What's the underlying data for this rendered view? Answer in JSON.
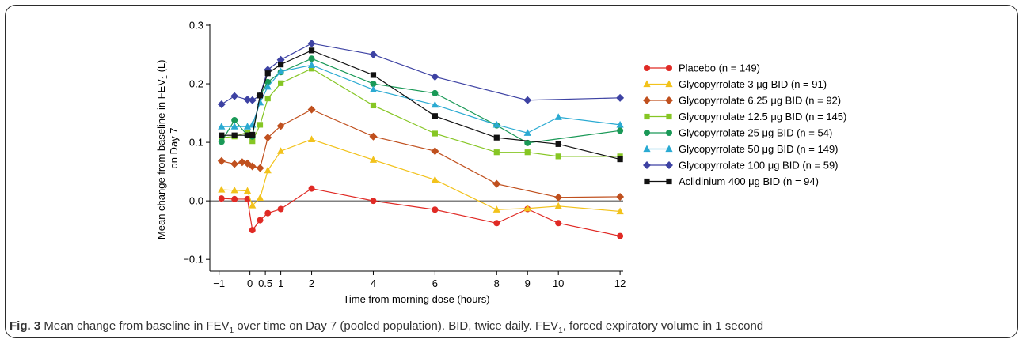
{
  "chart_data": {
    "type": "line",
    "xlabel": "Time from morning dose (hours)",
    "ylabel_line1": "Mean change from baseline in FEV",
    "ylabel_sub": "1",
    "ylabel_line1_end": " (L)",
    "ylabel_line2": "on Day 7",
    "ylim": [
      -0.12,
      0.3
    ],
    "yticks": [
      -0.1,
      0.0,
      0.1,
      0.2,
      0.3
    ],
    "ytick_labels": [
      "−0.1",
      "0.0",
      "0.1",
      "0.2",
      "0.3"
    ],
    "xticks": [
      -1,
      0,
      0.5,
      1,
      2,
      4,
      6,
      8,
      9,
      10,
      12
    ],
    "xtick_labels": [
      "−1",
      "0",
      "0.5",
      "1",
      "2",
      "4",
      "6",
      "8",
      "9",
      "10",
      "12"
    ],
    "xlim": [
      -1.3,
      12.1
    ],
    "reference_line_y": 0,
    "legend_position": "right",
    "series": [
      {
        "name": "Placebo (n = 149)",
        "color": "#e02a25",
        "marker": "circle",
        "points": [
          [
            -0.92,
            0.004
          ],
          [
            -0.5,
            0.003
          ],
          [
            -0.08,
            0.003
          ],
          [
            0.08,
            -0.05
          ],
          [
            0.33,
            -0.033
          ],
          [
            0.58,
            -0.021
          ],
          [
            1,
            -0.014
          ],
          [
            2,
            0.021
          ],
          [
            4,
            0.0
          ],
          [
            6,
            -0.015
          ],
          [
            8,
            -0.038
          ],
          [
            9,
            -0.014
          ],
          [
            10,
            -0.038
          ],
          [
            12,
            -0.06
          ]
        ]
      },
      {
        "name": "Glycopyrrolate 3 μg BID (n = 91)",
        "color": "#f2c21b",
        "marker": "triangle",
        "points": [
          [
            -0.92,
            0.019
          ],
          [
            -0.5,
            0.018
          ],
          [
            -0.08,
            0.017
          ],
          [
            0.08,
            -0.008
          ],
          [
            0.33,
            0.005
          ],
          [
            0.58,
            0.052
          ],
          [
            1,
            0.085
          ],
          [
            2,
            0.105
          ],
          [
            4,
            0.07
          ],
          [
            6,
            0.036
          ],
          [
            8,
            -0.015
          ],
          [
            9,
            -0.013
          ],
          [
            10,
            -0.009
          ],
          [
            12,
            -0.018
          ]
        ]
      },
      {
        "name": "Glycopyrrolate 6.25 μg BID (n = 92)",
        "color": "#c0501e",
        "marker": "diamond",
        "points": [
          [
            -0.92,
            0.068
          ],
          [
            -0.5,
            0.063
          ],
          [
            -0.25,
            0.066
          ],
          [
            -0.08,
            0.064
          ],
          [
            0.08,
            0.059
          ],
          [
            0.33,
            0.056
          ],
          [
            0.58,
            0.108
          ],
          [
            1,
            0.128
          ],
          [
            2,
            0.156
          ],
          [
            4,
            0.11
          ],
          [
            6,
            0.085
          ],
          [
            8,
            0.029
          ],
          [
            10,
            0.006
          ],
          [
            12,
            0.007
          ]
        ]
      },
      {
        "name": "Glycopyrrolate 12.5 μg BID (n = 145)",
        "color": "#86c624",
        "marker": "square",
        "points": [
          [
            -0.92,
            0.108
          ],
          [
            -0.5,
            0.11
          ],
          [
            -0.08,
            0.117
          ],
          [
            0.08,
            0.102
          ],
          [
            0.33,
            0.13
          ],
          [
            0.58,
            0.175
          ],
          [
            1,
            0.201
          ],
          [
            2,
            0.226
          ],
          [
            4,
            0.163
          ],
          [
            6,
            0.115
          ],
          [
            8,
            0.083
          ],
          [
            9,
            0.083
          ],
          [
            10,
            0.076
          ],
          [
            12,
            0.076
          ]
        ]
      },
      {
        "name": "Glycopyrrolate 25 μg BID (n = 54)",
        "color": "#1a9957",
        "marker": "circle",
        "points": [
          [
            -0.92,
            0.101
          ],
          [
            -0.5,
            0.138
          ],
          [
            -0.08,
            0.112
          ],
          [
            0.08,
            0.11
          ],
          [
            0.33,
            0.18
          ],
          [
            0.58,
            0.203
          ],
          [
            1,
            0.22
          ],
          [
            2,
            0.243
          ],
          [
            4,
            0.2
          ],
          [
            6,
            0.184
          ],
          [
            8,
            0.129
          ],
          [
            9,
            0.099
          ],
          [
            12,
            0.12
          ]
        ]
      },
      {
        "name": "Glycopyrrolate 50 μg BID (n = 149)",
        "color": "#2aaad2",
        "marker": "triangle",
        "points": [
          [
            -0.92,
            0.127
          ],
          [
            -0.5,
            0.127
          ],
          [
            -0.08,
            0.127
          ],
          [
            0.08,
            0.13
          ],
          [
            0.33,
            0.168
          ],
          [
            0.58,
            0.195
          ],
          [
            1,
            0.221
          ],
          [
            2,
            0.232
          ],
          [
            4,
            0.19
          ],
          [
            6,
            0.164
          ],
          [
            8,
            0.13
          ],
          [
            9,
            0.116
          ],
          [
            10,
            0.143
          ],
          [
            12,
            0.13
          ]
        ]
      },
      {
        "name": "Glycopyrrolate 100 μg BID (n = 59)",
        "color": "#3d42a3",
        "marker": "diamond",
        "points": [
          [
            -0.92,
            0.165
          ],
          [
            -0.5,
            0.179
          ],
          [
            -0.08,
            0.173
          ],
          [
            0.08,
            0.172
          ],
          [
            0.33,
            0.18
          ],
          [
            0.58,
            0.224
          ],
          [
            1,
            0.241
          ],
          [
            2,
            0.269
          ],
          [
            4,
            0.25
          ],
          [
            6,
            0.212
          ],
          [
            9,
            0.172
          ],
          [
            12,
            0.176
          ]
        ]
      },
      {
        "name": "Aclidinium 400 μg BID (n = 94)",
        "color": "#111111",
        "marker": "square",
        "points": [
          [
            -0.92,
            0.112
          ],
          [
            -0.5,
            0.112
          ],
          [
            -0.08,
            0.112
          ],
          [
            0.08,
            0.113
          ],
          [
            0.33,
            0.18
          ],
          [
            0.58,
            0.218
          ],
          [
            1,
            0.233
          ],
          [
            2,
            0.257
          ],
          [
            4,
            0.215
          ],
          [
            6,
            0.145
          ],
          [
            8,
            0.108
          ],
          [
            10,
            0.097
          ],
          [
            12,
            0.071
          ]
        ]
      }
    ]
  },
  "caption": {
    "label": "Fig. 3",
    "text_part1": " Mean change from baseline in FEV",
    "sub1": "1",
    "text_part2": " over time on Day 7 (pooled population). BID, twice daily. FEV",
    "sub2": "1",
    "text_part3": ", forced expiratory volume in 1 second"
  }
}
